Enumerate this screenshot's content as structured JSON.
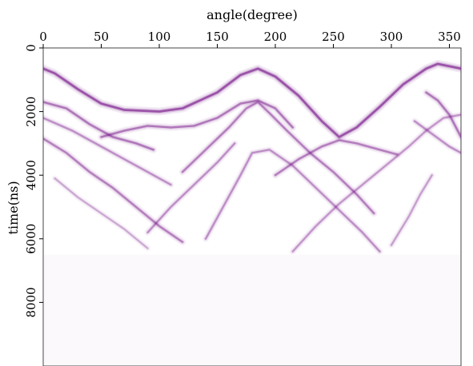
{
  "chart_data": {
    "type": "heatmap",
    "title": "",
    "xlabel": "angle(degree)",
    "ylabel": "time(ns)",
    "x_axis_position": "top",
    "y_axis_direction": "down",
    "xlim": [
      0,
      360
    ],
    "ylim": [
      0,
      10000
    ],
    "x_ticks": [
      0,
      50,
      100,
      150,
      200,
      250,
      300,
      350
    ],
    "y_ticks": [
      0,
      2000,
      4000,
      6000,
      8000
    ],
    "x_tick_labels": [
      "0",
      "50",
      "100",
      "150",
      "200",
      "250",
      "300",
      "350"
    ],
    "y_tick_labels": [
      "0",
      "2000",
      "4000",
      "6000",
      "8000"
    ],
    "data_extent_time": 6500,
    "colormap": {
      "background": "#ffffff",
      "peak": "#7a1a8c"
    },
    "grid": false,
    "events": [
      {
        "name": "direct-arrival",
        "strength": 1.0,
        "points": [
          [
            0,
            650
          ],
          [
            10,
            800
          ],
          [
            30,
            1300
          ],
          [
            50,
            1750
          ],
          [
            70,
            1950
          ],
          [
            100,
            2000
          ],
          [
            120,
            1900
          ],
          [
            150,
            1400
          ],
          [
            170,
            850
          ],
          [
            185,
            650
          ],
          [
            200,
            900
          ],
          [
            220,
            1500
          ],
          [
            240,
            2300
          ],
          [
            255,
            2800
          ],
          [
            270,
            2500
          ],
          [
            290,
            1850
          ],
          [
            310,
            1150
          ],
          [
            330,
            650
          ],
          [
            340,
            500
          ],
          [
            360,
            650
          ]
        ]
      },
      {
        "name": "reflection-a",
        "strength": 0.75,
        "points": [
          [
            0,
            1700
          ],
          [
            20,
            1900
          ],
          [
            40,
            2400
          ],
          [
            60,
            2800
          ],
          [
            80,
            3000
          ],
          [
            95,
            3200
          ]
        ]
      },
      {
        "name": "reflection-b",
        "strength": 0.6,
        "points": [
          [
            0,
            2200
          ],
          [
            25,
            2600
          ],
          [
            50,
            3100
          ],
          [
            70,
            3500
          ],
          [
            90,
            3900
          ],
          [
            110,
            4300
          ]
        ]
      },
      {
        "name": "reflection-c",
        "strength": 0.7,
        "points": [
          [
            0,
            2850
          ],
          [
            20,
            3300
          ],
          [
            40,
            3900
          ],
          [
            60,
            4400
          ],
          [
            80,
            5000
          ],
          [
            100,
            5600
          ],
          [
            120,
            6100
          ]
        ]
      },
      {
        "name": "reflection-d",
        "strength": 0.75,
        "points": [
          [
            50,
            2800
          ],
          [
            70,
            2600
          ],
          [
            90,
            2450
          ],
          [
            110,
            2500
          ],
          [
            130,
            2450
          ],
          [
            150,
            2200
          ],
          [
            170,
            1750
          ],
          [
            185,
            1650
          ],
          [
            200,
            1900
          ],
          [
            215,
            2500
          ]
        ]
      },
      {
        "name": "reflection-e",
        "strength": 0.7,
        "points": [
          [
            120,
            3900
          ],
          [
            140,
            3200
          ],
          [
            160,
            2500
          ],
          [
            175,
            1900
          ],
          [
            185,
            1700
          ],
          [
            195,
            2050
          ],
          [
            210,
            2600
          ],
          [
            230,
            3300
          ],
          [
            250,
            3900
          ],
          [
            270,
            4600
          ],
          [
            285,
            5200
          ]
        ]
      },
      {
        "name": "reflection-f",
        "strength": 0.6,
        "points": [
          [
            140,
            6000
          ],
          [
            155,
            5000
          ],
          [
            170,
            4000
          ],
          [
            180,
            3300
          ],
          [
            195,
            3200
          ],
          [
            215,
            3700
          ],
          [
            235,
            4400
          ],
          [
            255,
            5100
          ],
          [
            275,
            5800
          ],
          [
            290,
            6400
          ]
        ]
      },
      {
        "name": "reflection-g",
        "strength": 0.6,
        "points": [
          [
            90,
            5800
          ],
          [
            110,
            5000
          ],
          [
            130,
            4300
          ],
          [
            150,
            3600
          ],
          [
            165,
            3000
          ]
        ]
      },
      {
        "name": "reflection-h",
        "strength": 0.7,
        "points": [
          [
            200,
            4000
          ],
          [
            220,
            3500
          ],
          [
            240,
            3100
          ],
          [
            255,
            2900
          ],
          [
            270,
            3000
          ],
          [
            290,
            3200
          ],
          [
            305,
            3350
          ]
        ]
      },
      {
        "name": "reflection-i",
        "strength": 0.55,
        "points": [
          [
            215,
            6400
          ],
          [
            235,
            5600
          ],
          [
            255,
            4900
          ],
          [
            275,
            4300
          ],
          [
            295,
            3700
          ],
          [
            315,
            3100
          ],
          [
            330,
            2600
          ],
          [
            345,
            2200
          ],
          [
            360,
            2100
          ]
        ]
      },
      {
        "name": "reflection-j",
        "strength": 0.75,
        "points": [
          [
            330,
            1400
          ],
          [
            340,
            1650
          ],
          [
            350,
            2100
          ],
          [
            360,
            2800
          ]
        ]
      },
      {
        "name": "reflection-k",
        "strength": 0.6,
        "points": [
          [
            320,
            2300
          ],
          [
            335,
            2700
          ],
          [
            350,
            3100
          ],
          [
            360,
            3300
          ]
        ]
      },
      {
        "name": "reflection-l",
        "strength": 0.5,
        "points": [
          [
            300,
            6200
          ],
          [
            315,
            5300
          ],
          [
            325,
            4600
          ],
          [
            335,
            4000
          ]
        ]
      },
      {
        "name": "reflection-m",
        "strength": 0.45,
        "points": [
          [
            10,
            4100
          ],
          [
            30,
            4700
          ],
          [
            50,
            5200
          ],
          [
            70,
            5700
          ],
          [
            90,
            6300
          ]
        ]
      }
    ]
  }
}
